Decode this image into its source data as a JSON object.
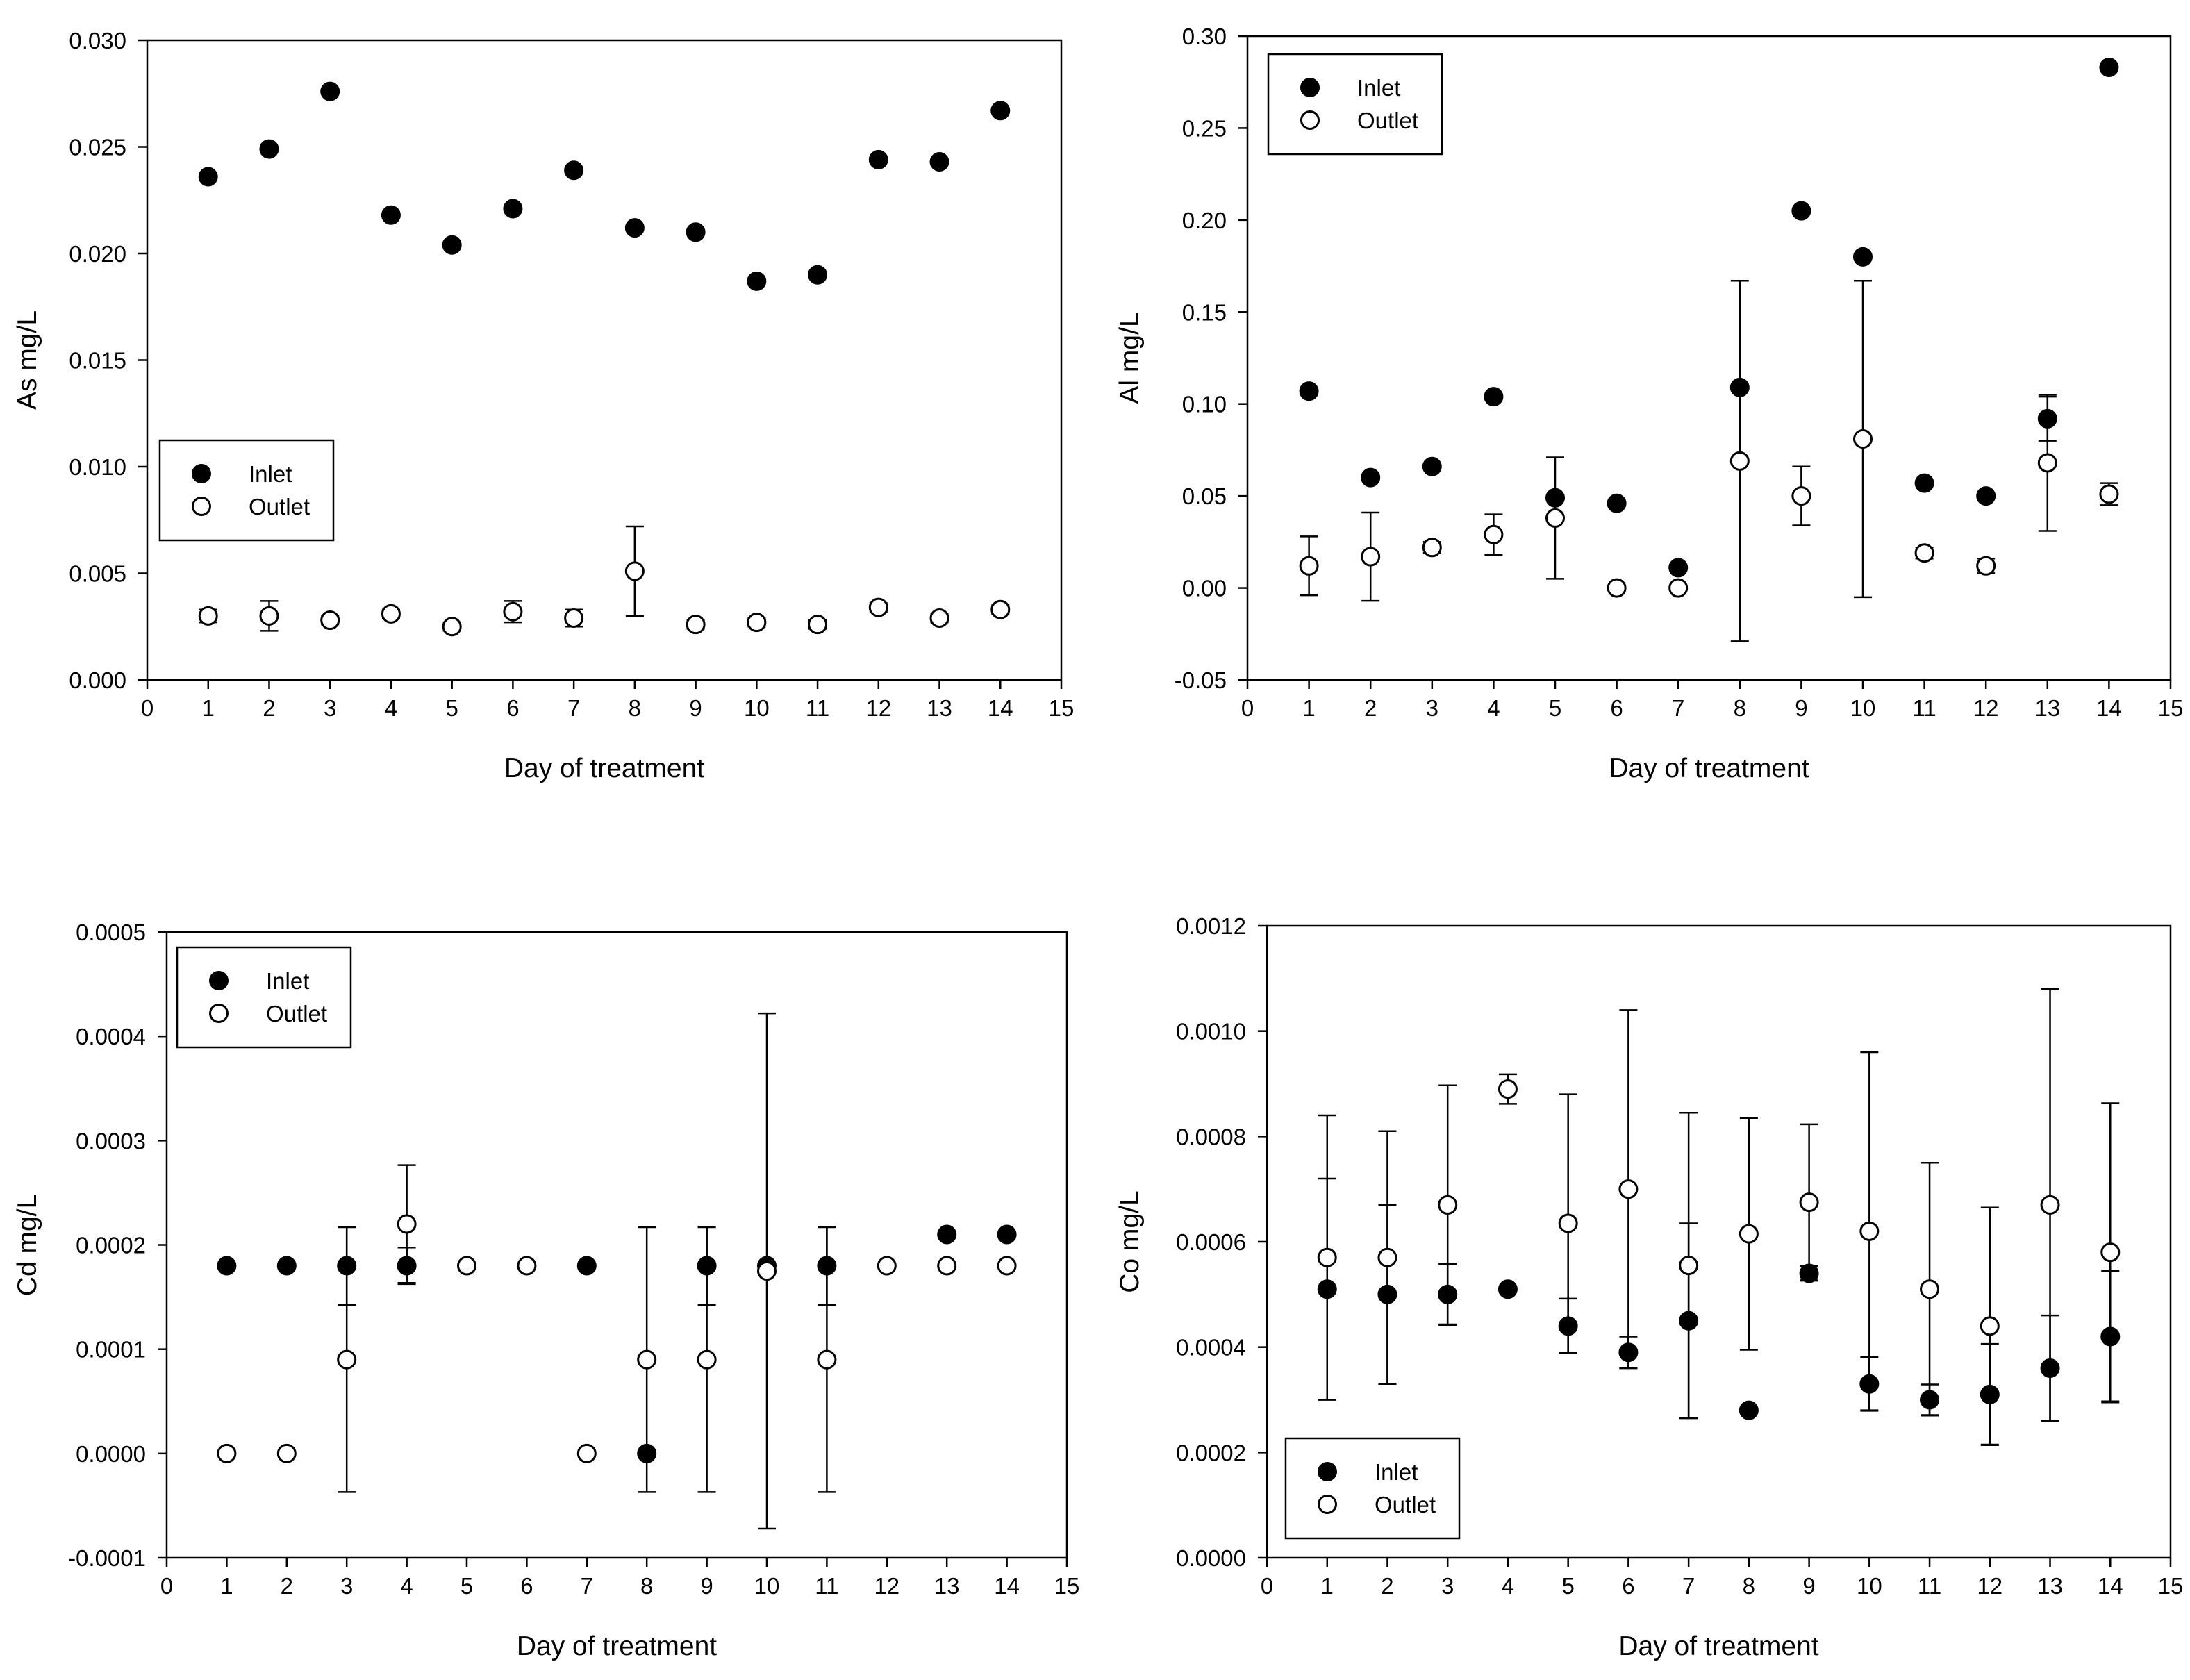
{
  "colors": {
    "ink": "#000000",
    "background": "#ffffff",
    "inlet_marker": "#000000",
    "outlet_marker": "#ffffff"
  },
  "chart_data": [
    {
      "type": "scatter",
      "id": "as",
      "title": "",
      "xlabel": "Day of treatment",
      "ylabel": "As mg/L",
      "xlim": [
        0,
        15
      ],
      "ylim": [
        0,
        0.03
      ],
      "xticks": [
        0,
        1,
        2,
        3,
        4,
        5,
        6,
        7,
        8,
        9,
        10,
        11,
        12,
        13,
        14,
        15
      ],
      "yticks": [
        "0.000",
        "0.005",
        "0.010",
        "0.015",
        "0.020",
        "0.025",
        "0.030"
      ],
      "legend_position": "center-left",
      "series": [
        {
          "name": "Inlet",
          "marker": "filled-circle",
          "x": [
            1,
            2,
            3,
            4,
            5,
            6,
            7,
            8,
            9,
            10,
            11,
            12,
            13,
            14
          ],
          "values": [
            0.0236,
            0.0249,
            0.0276,
            0.0218,
            0.0204,
            0.0221,
            0.0239,
            0.0212,
            0.021,
            0.0187,
            0.019,
            0.0244,
            0.0243,
            0.0267
          ],
          "errors": [
            null,
            null,
            null,
            null,
            null,
            null,
            null,
            null,
            null,
            null,
            null,
            null,
            null,
            null
          ]
        },
        {
          "name": "Outlet",
          "marker": "open-circle",
          "x": [
            1,
            2,
            3,
            4,
            5,
            6,
            7,
            8,
            9,
            10,
            11,
            12,
            13,
            14
          ],
          "values": [
            0.003,
            0.003,
            0.0028,
            0.0031,
            0.0025,
            0.0032,
            0.0029,
            0.0051,
            0.0026,
            0.0027,
            0.0026,
            0.0034,
            0.0029,
            0.0033
          ],
          "errors": [
            0.0003,
            0.0007,
            0.0002,
            0.0002,
            0.0002,
            0.0005,
            0.0004,
            0.0021,
            0.0002,
            0.0002,
            0.0002,
            0.0002,
            0.0002,
            0.0002
          ]
        }
      ]
    },
    {
      "type": "scatter",
      "id": "al",
      "title": "",
      "xlabel": "Day of treatment",
      "ylabel": "Al mg/L",
      "xlim": [
        0,
        15
      ],
      "ylim": [
        -0.05,
        0.3
      ],
      "xticks": [
        0,
        1,
        2,
        3,
        4,
        5,
        6,
        7,
        8,
        9,
        10,
        11,
        12,
        13,
        14,
        15
      ],
      "yticks": [
        "-0.05",
        "0.00",
        "0.05",
        "0.10",
        "0.15",
        "0.20",
        "0.25",
        "0.30"
      ],
      "legend_position": "top-left",
      "series": [
        {
          "name": "Inlet",
          "marker": "filled-circle",
          "x": [
            1,
            2,
            3,
            4,
            5,
            6,
            7,
            8,
            9,
            10,
            11,
            12,
            13,
            14
          ],
          "values": [
            0.107,
            0.06,
            0.066,
            0.104,
            0.049,
            0.046,
            0.011,
            0.109,
            0.205,
            0.18,
            0.057,
            0.05,
            0.092,
            0.283
          ],
          "errors": [
            null,
            null,
            null,
            null,
            null,
            null,
            null,
            null,
            null,
            null,
            null,
            null,
            0.012,
            null
          ]
        },
        {
          "name": "Outlet",
          "marker": "open-circle",
          "x": [
            1,
            2,
            3,
            4,
            5,
            6,
            7,
            8,
            9,
            10,
            11,
            12,
            13,
            14
          ],
          "values": [
            0.012,
            0.017,
            0.022,
            0.029,
            0.038,
            0.0,
            0.0,
            0.069,
            0.05,
            0.081,
            0.019,
            0.012,
            0.068,
            0.051
          ],
          "errors": [
            0.016,
            0.024,
            0.003,
            0.011,
            0.033,
            null,
            null,
            0.098,
            0.016,
            0.086,
            0.003,
            0.004,
            0.037,
            0.006
          ]
        }
      ]
    },
    {
      "type": "scatter",
      "id": "cd",
      "title": "",
      "xlabel": "Day of treatment",
      "ylabel": "Cd mg/L",
      "xlim": [
        0,
        15
      ],
      "ylim": [
        -0.0001,
        0.0005
      ],
      "xticks": [
        0,
        1,
        2,
        3,
        4,
        5,
        6,
        7,
        8,
        9,
        10,
        11,
        12,
        13,
        14,
        15
      ],
      "yticks": [
        "-0.0001",
        "0.0000",
        "0.0001",
        "0.0002",
        "0.0003",
        "0.0004",
        "0.0005"
      ],
      "legend_position": "top-left",
      "series": [
        {
          "name": "Inlet",
          "marker": "filled-circle",
          "x": [
            1,
            2,
            3,
            4,
            7,
            8,
            9,
            10,
            11,
            13,
            14
          ],
          "values": [
            0.00018,
            0.00018,
            0.00018,
            0.00018,
            0.00018,
            0.0,
            0.00018,
            0.00018,
            0.00018,
            0.00021,
            0.00021
          ],
          "errors": [
            null,
            null,
            3.75e-05,
            1.75e-05,
            null,
            null,
            3.75e-05,
            null,
            3.75e-05,
            null,
            null
          ]
        },
        {
          "name": "Outlet",
          "marker": "open-circle",
          "x": [
            1,
            2,
            3,
            4,
            5,
            6,
            7,
            8,
            9,
            10,
            11,
            12,
            13,
            14
          ],
          "values": [
            0.0,
            0.0,
            9e-05,
            0.00022,
            0.00018,
            0.00018,
            0.0,
            9e-05,
            9e-05,
            0.000175,
            9e-05,
            0.00018,
            0.00018,
            0.00018
          ],
          "errors": [
            null,
            null,
            0.000127,
            5.65e-05,
            null,
            null,
            null,
            0.000127,
            0.000127,
            0.000247,
            0.000127,
            null,
            null,
            null
          ]
        }
      ]
    },
    {
      "type": "scatter",
      "id": "co",
      "title": "",
      "xlabel": "Day of treatment",
      "ylabel": "Co mg/L",
      "xlim": [
        0,
        15
      ],
      "ylim": [
        0,
        0.0012
      ],
      "xticks": [
        0,
        1,
        2,
        3,
        4,
        5,
        6,
        7,
        8,
        9,
        10,
        11,
        12,
        13,
        14,
        15
      ],
      "yticks": [
        "0.0000",
        "0.0002",
        "0.0004",
        "0.0006",
        "0.0008",
        "0.0010",
        "0.0012"
      ],
      "legend_position": "bottom-left",
      "series": [
        {
          "name": "Inlet",
          "marker": "filled-circle",
          "x": [
            1,
            2,
            3,
            4,
            5,
            6,
            7,
            8,
            9,
            10,
            11,
            12,
            13,
            14
          ],
          "values": [
            0.00051,
            0.0005,
            0.0005,
            0.00051,
            0.00044,
            0.00039,
            0.00045,
            0.00028,
            0.00054,
            0.00033,
            0.0003,
            0.00031,
            0.00036,
            0.00042
          ],
          "errors": [
            0.00021,
            0.00017,
            5.8e-05,
            null,
            5.2e-05,
            3e-05,
            0.000185,
            null,
            1.4e-05,
            5.1e-05,
            2.9e-05,
            9.6e-05,
            0.0001,
            0.000125
          ]
        },
        {
          "name": "Outlet",
          "marker": "open-circle",
          "x": [
            1,
            2,
            3,
            4,
            5,
            6,
            7,
            8,
            9,
            10,
            11,
            12,
            13,
            14
          ],
          "values": [
            0.00057,
            0.00057,
            0.00067,
            0.00089,
            0.000635,
            0.0007,
            0.000555,
            0.000615,
            0.000675,
            0.00062,
            0.00051,
            0.00044,
            0.00067,
            0.00058
          ],
          "errors": [
            0.00027,
            0.00024,
            0.000227,
            2.8e-05,
            0.000245,
            0.00034,
            0.00029,
            0.00022,
            0.000148,
            0.00034,
            0.00024,
            0.000225,
            0.00041,
            0.000283
          ]
        }
      ]
    }
  ]
}
